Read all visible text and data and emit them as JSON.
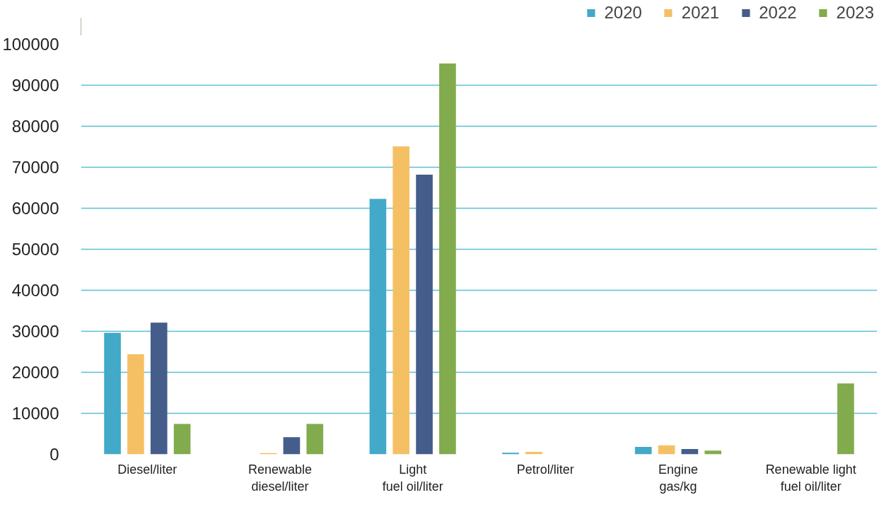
{
  "chart_data": {
    "type": "bar",
    "categories": [
      "Diesel/liter",
      "Renewable\ndiesel/liter",
      "Light\nfuel oil/liter",
      "Petrol/liter",
      "Engine\ngas/kg",
      "Renewable light\nfuel oil/liter"
    ],
    "series": [
      {
        "name": "2020",
        "color": "#43a9c8",
        "values": [
          29600,
          null,
          62300,
          400,
          1800,
          null
        ]
      },
      {
        "name": "2021",
        "color": "#f5c064",
        "values": [
          24400,
          300,
          75100,
          600,
          2200,
          null
        ]
      },
      {
        "name": "2022",
        "color": "#455d8a",
        "values": [
          32100,
          4200,
          68200,
          null,
          1300,
          null
        ]
      },
      {
        "name": "2023",
        "color": "#82ab4d",
        "values": [
          7400,
          7400,
          95300,
          null,
          900,
          17300
        ]
      }
    ],
    "ylim": [
      0,
      100000
    ],
    "yticks": [
      0,
      10000,
      20000,
      30000,
      40000,
      50000,
      60000,
      70000,
      80000,
      90000,
      100000
    ],
    "grid": "y",
    "legend": "top right"
  }
}
